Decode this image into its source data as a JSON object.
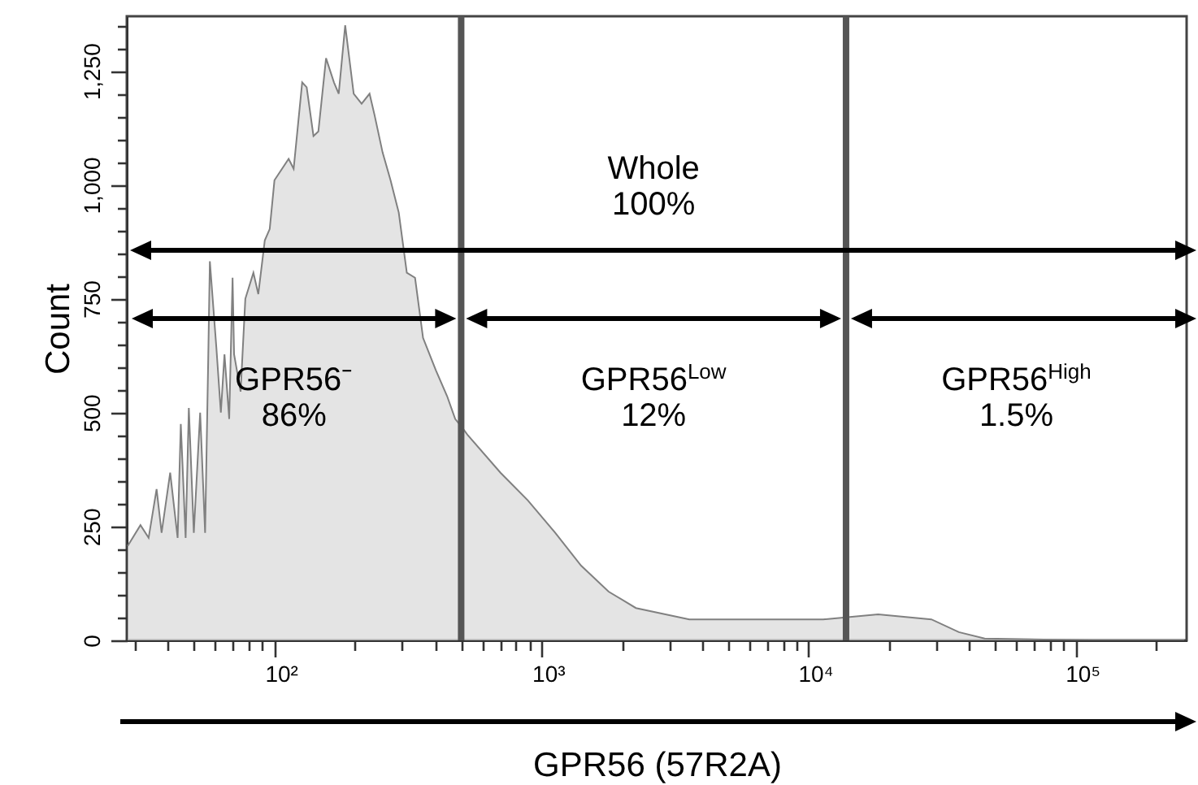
{
  "chart_data": {
    "type": "area",
    "xlabel": "GPR56 (57R2A)",
    "ylabel": "Count",
    "log": "x",
    "x": [
      28.2,
      31.5,
      33.8,
      36.2,
      37.8,
      40.7,
      43.4,
      44.6,
      46.5,
      47.8,
      49.9,
      52.7,
      55,
      56.5,
      57.3,
      60.6,
      63,
      65,
      67.7,
      69.7,
      70.6,
      74.7,
      77.8,
      83.4,
      87,
      92,
      96,
      100,
      113,
      118,
      127,
      132,
      140,
      146,
      156,
      167,
      174,
      184,
      198,
      212,
      227,
      237,
      254,
      272,
      292,
      313,
      336,
      360,
      402,
      443,
      475,
      509,
      530,
      702,
      889,
      1125,
      1406,
      1782,
      2255,
      3574,
      7160,
      11330,
      18200,
      28800,
      36500,
      45600,
      115000,
      255000
    ],
    "series": [
      {
        "color": "#d9d9d9",
        "values": [
          207,
          253,
          225,
          332,
          236,
          368,
          225,
          475,
          225,
          510,
          236,
          500,
          236,
          618,
          832,
          643,
          500,
          628,
          486,
          796,
          628,
          546,
          750,
          807,
          760,
          878,
          903,
          1010,
          1057,
          1035,
          1225,
          1214,
          1107,
          1117,
          1278,
          1225,
          1200,
          1350,
          1200,
          1178,
          1200,
          1153,
          1071,
          1010,
          939,
          807,
          796,
          664,
          593,
          536,
          486,
          464,
          450,
          368,
          307,
          236,
          164,
          107,
          71,
          46,
          46,
          46,
          57,
          46,
          18,
          4,
          0,
          0
        ]
      }
    ],
    "xlim": [
      28,
      260000
    ],
    "ylim": [
      0,
      1370
    ],
    "xticks": [
      {
        "value": 30,
        "label": null
      },
      {
        "value": 40,
        "label": null
      },
      {
        "value": 50,
        "label": null
      },
      {
        "value": 60,
        "label": null
      },
      {
        "value": 70,
        "label": null
      },
      {
        "value": 80,
        "label": null
      },
      {
        "value": 90,
        "label": null
      },
      {
        "value": 100,
        "label": "10²"
      },
      {
        "value": 200,
        "label": null
      },
      {
        "value": 300,
        "label": null
      },
      {
        "value": 400,
        "label": null
      },
      {
        "value": 500,
        "label": null
      },
      {
        "value": 600,
        "label": null
      },
      {
        "value": 700,
        "label": null
      },
      {
        "value": 800,
        "label": null
      },
      {
        "value": 900,
        "label": null
      },
      {
        "value": 1000,
        "label": "10³"
      },
      {
        "value": 2000,
        "label": null
      },
      {
        "value": 3000,
        "label": null
      },
      {
        "value": 4000,
        "label": null
      },
      {
        "value": 5000,
        "label": null
      },
      {
        "value": 6000,
        "label": null
      },
      {
        "value": 7000,
        "label": null
      },
      {
        "value": 8000,
        "label": null
      },
      {
        "value": 9000,
        "label": null
      },
      {
        "value": 10000,
        "label": "10⁴"
      },
      {
        "value": 20000,
        "label": null
      },
      {
        "value": 30000,
        "label": null
      },
      {
        "value": 40000,
        "label": null
      },
      {
        "value": 50000,
        "label": null
      },
      {
        "value": 60000,
        "label": null
      },
      {
        "value": 70000,
        "label": null
      },
      {
        "value": 80000,
        "label": null
      },
      {
        "value": 90000,
        "label": null
      },
      {
        "value": 100000,
        "label": "10⁵"
      },
      {
        "value": 200000,
        "label": null
      }
    ],
    "yticks": [
      0,
      {
        "value": 50,
        "label": null
      },
      {
        "value": 100,
        "label": null
      },
      {
        "value": 150,
        "label": null
      },
      {
        "value": 200,
        "label": null
      },
      250,
      {
        "value": 300,
        "label": null
      },
      {
        "value": 350,
        "label": null
      },
      {
        "value": 400,
        "label": null
      },
      {
        "value": 450,
        "label": null
      },
      500,
      {
        "value": 550,
        "label": null
      },
      {
        "value": 600,
        "label": null
      },
      {
        "value": 650,
        "label": null
      },
      {
        "value": 700,
        "label": null
      },
      750,
      {
        "value": 800,
        "label": null
      },
      {
        "value": 850,
        "label": null
      },
      {
        "value": 900,
        "label": null
      },
      {
        "value": 950,
        "label": null
      },
      {
        "value": 1000,
        "label": "1,000"
      },
      {
        "value": 1050,
        "label": null
      },
      {
        "value": 1100,
        "label": null
      },
      {
        "value": 1150,
        "label": null
      },
      {
        "value": 1200,
        "label": null
      },
      {
        "value": 1250,
        "label": "1,250"
      },
      {
        "value": 1300,
        "label": null
      },
      {
        "value": 1350,
        "label": null
      }
    ],
    "ref_lines": [
      {
        "axis": "x",
        "value": 500,
        "color": "#555555"
      },
      {
        "axis": "x",
        "value": 13800,
        "color": "#555555"
      }
    ],
    "annotations": [
      "Whole\n100%",
      "GPR56⁻\n86%",
      "GPR56$^{Low}$\n12%",
      "GPR56$^{High}$\n1.5%"
    ],
    "grid": false
  }
}
